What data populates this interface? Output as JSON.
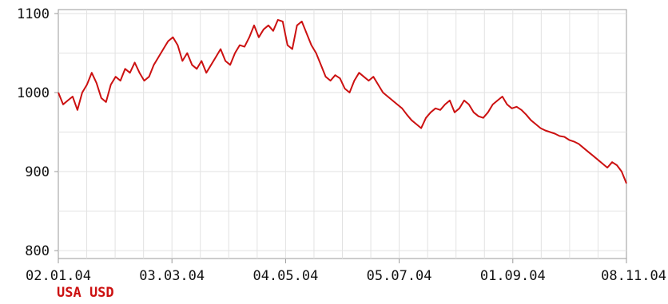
{
  "chart_data": {
    "type": "line",
    "title": "",
    "xlabel": "",
    "ylabel": "",
    "x_tick_labels": [
      "02.01.04",
      "03.03.04",
      "04.05.04",
      "05.07.04",
      "01.09.04",
      "08.11.04"
    ],
    "y_tick_labels": [
      "800",
      "900",
      "1000",
      "1100"
    ],
    "ylim": [
      790,
      1105
    ],
    "grid": true,
    "series_label": "USA USD",
    "line_color": "#cc1111",
    "series": [
      {
        "values": [
          1000,
          985,
          990,
          995,
          978,
          1000,
          1010,
          1025,
          1012,
          993,
          988,
          1010,
          1020,
          1015,
          1030,
          1025,
          1038,
          1025,
          1015,
          1020,
          1035,
          1045,
          1055,
          1065,
          1070,
          1060,
          1040,
          1050,
          1035,
          1030,
          1040,
          1025,
          1035,
          1045,
          1055,
          1040,
          1035,
          1050,
          1060,
          1058,
          1070,
          1085,
          1070,
          1080,
          1085,
          1078,
          1092,
          1090,
          1060,
          1055,
          1085,
          1090,
          1075,
          1060,
          1050,
          1035,
          1020,
          1015,
          1022,
          1018,
          1005,
          1000,
          1015,
          1025,
          1020,
          1015,
          1020,
          1010,
          1000,
          995,
          990,
          985,
          980,
          972,
          965,
          960,
          955,
          968,
          975,
          980,
          978,
          985,
          990,
          975,
          980,
          990,
          985,
          975,
          970,
          968,
          975,
          985,
          990,
          995,
          985,
          980,
          982,
          978,
          972,
          965,
          960,
          955,
          952,
          950,
          948,
          945,
          944,
          940,
          938,
          935,
          930,
          925,
          920,
          915,
          910,
          905,
          912,
          908,
          900,
          885
        ]
      }
    ]
  }
}
